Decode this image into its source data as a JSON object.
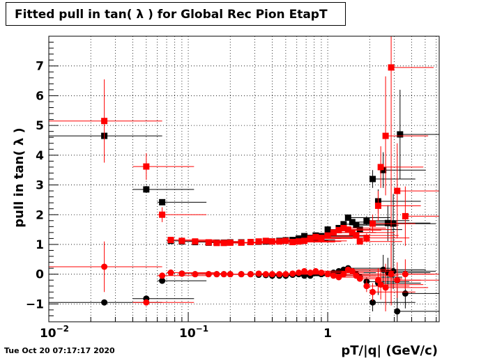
{
  "header": {
    "title": "Fitted pull in tan( λ ) for Global Rec Pion EtapT"
  },
  "footer": {
    "timestamp": "Tue Oct 20 07:17:17 2020"
  },
  "chart_data": {
    "type": "scatter",
    "title": "Fitted pull in tan( λ ) for Global Rec Pion EtapT",
    "xlabel": "pT/|q| (GeV/c)",
    "ylabel": "pull in tan( λ )",
    "xscale": "log",
    "xlim": [
      0.01,
      6.3
    ],
    "ylim": [
      -1.6,
      8.0
    ],
    "grid": true,
    "x_ticks": [
      {
        "value": 0.01,
        "base": "10",
        "exp": "−2"
      },
      {
        "value": 0.1,
        "base": "10",
        "exp": "−1"
      },
      {
        "value": 1,
        "base": "1",
        "exp": ""
      }
    ],
    "y_ticks": [
      {
        "value": -1,
        "label": "−1"
      },
      {
        "value": 0,
        "label": "0"
      },
      {
        "value": 1,
        "label": "1"
      },
      {
        "value": 2,
        "label": "2"
      },
      {
        "value": 3,
        "label": "3"
      },
      {
        "value": 4,
        "label": "4"
      },
      {
        "value": 5,
        "label": "5"
      },
      {
        "value": 6,
        "label": "6"
      },
      {
        "value": 7,
        "label": "7"
      }
    ],
    "series": [
      {
        "role": "sigma",
        "color": "#000000",
        "marker": "square",
        "points": [
          [
            0.025,
            4.65,
            0.015,
            0.04,
            0
          ],
          [
            0.05,
            2.85,
            0.01,
            0.06,
            0.12
          ],
          [
            0.065,
            2.42,
            0.005,
            0.07,
            0.1
          ],
          [
            0.075,
            1.12,
            0.005,
            0.08,
            0.05
          ],
          [
            0.09,
            1.1,
            0.005,
            0.11,
            0
          ],
          [
            0.112,
            1.08,
            0.005,
            0.125,
            0
          ],
          [
            0.14,
            1.06,
            0.005,
            0.15,
            0
          ],
          [
            0.16,
            1.06,
            0.005,
            0.17,
            0
          ],
          [
            0.18,
            1.06,
            0.005,
            0.19,
            0
          ],
          [
            0.2,
            1.07,
            0.005,
            0.21,
            0
          ],
          [
            0.24,
            1.07,
            0.005,
            0.25,
            0
          ],
          [
            0.28,
            1.08,
            0.005,
            0.29,
            0
          ],
          [
            0.32,
            1.09,
            0.005,
            0.33,
            0
          ],
          [
            0.36,
            1.1,
            0.005,
            0.37,
            0
          ],
          [
            0.4,
            1.1,
            0.005,
            0.41,
            0
          ],
          [
            0.45,
            1.12,
            0.005,
            0.46,
            0
          ],
          [
            0.5,
            1.14,
            0.005,
            0.51,
            0
          ],
          [
            0.56,
            1.15,
            0.005,
            0.57,
            0
          ],
          [
            0.62,
            1.2,
            0.005,
            0.63,
            0.05
          ],
          [
            0.68,
            1.28,
            0.005,
            0.69,
            0.05
          ],
          [
            0.75,
            1.22,
            0.005,
            0.76,
            0.05
          ],
          [
            0.82,
            1.3,
            0.005,
            0.83,
            0.05
          ],
          [
            0.9,
            1.28,
            0.005,
            0.91,
            0.05
          ],
          [
            1.0,
            1.5,
            0.005,
            1.02,
            0.06
          ],
          [
            1.1,
            1.4,
            0.005,
            1.12,
            0.06
          ],
          [
            1.2,
            1.55,
            0.005,
            1.22,
            0.07
          ],
          [
            1.3,
            1.68,
            0.005,
            1.32,
            0.07
          ],
          [
            1.4,
            1.9,
            0.005,
            1.42,
            0.08
          ],
          [
            1.5,
            1.75,
            0.005,
            1.52,
            0.08
          ],
          [
            1.6,
            1.65,
            0.005,
            1.62,
            0.1
          ],
          [
            1.7,
            1.5,
            0.005,
            1.72,
            0.1
          ],
          [
            1.9,
            1.8,
            0.05,
            1.95,
            0.15
          ],
          [
            2.1,
            3.2,
            0.05,
            2.15,
            0.3
          ],
          [
            2.3,
            2.45,
            0.05,
            2.35,
            0.4
          ],
          [
            2.5,
            3.5,
            0.05,
            2.55,
            0.6
          ],
          [
            2.7,
            1.72,
            0.05,
            2.75,
            0.6
          ],
          [
            2.95,
            1.7,
            0.05,
            3.0,
            1.0
          ],
          [
            3.3,
            4.7,
            0.1,
            3.4,
            1.5
          ]
        ]
      },
      {
        "role": "sigma",
        "color": "#ff0000",
        "marker": "square",
        "points": [
          [
            0.025,
            5.15,
            0.015,
            0.04,
            1.4
          ],
          [
            0.05,
            3.62,
            0.01,
            0.06,
            0.45
          ],
          [
            0.065,
            2.0,
            0.005,
            0.07,
            0.25
          ],
          [
            0.075,
            1.15,
            0.005,
            0.08,
            0.1
          ],
          [
            0.09,
            1.12,
            0.005,
            0.11,
            0
          ],
          [
            0.112,
            1.1,
            0.005,
            0.125,
            0
          ],
          [
            0.14,
            1.07,
            0.005,
            0.15,
            0
          ],
          [
            0.16,
            1.05,
            0.005,
            0.17,
            0
          ],
          [
            0.18,
            1.05,
            0.005,
            0.19,
            0
          ],
          [
            0.2,
            1.06,
            0.005,
            0.21,
            0
          ],
          [
            0.24,
            1.06,
            0.005,
            0.25,
            0
          ],
          [
            0.28,
            1.08,
            0.005,
            0.29,
            0
          ],
          [
            0.32,
            1.1,
            0.005,
            0.33,
            0
          ],
          [
            0.36,
            1.12,
            0.005,
            0.37,
            0
          ],
          [
            0.4,
            1.1,
            0.005,
            0.41,
            0
          ],
          [
            0.45,
            1.1,
            0.005,
            0.46,
            0
          ],
          [
            0.5,
            1.12,
            0.005,
            0.51,
            0
          ],
          [
            0.56,
            1.08,
            0.005,
            0.57,
            0
          ],
          [
            0.62,
            1.1,
            0.005,
            0.63,
            0.05
          ],
          [
            0.68,
            1.12,
            0.005,
            0.69,
            0.05
          ],
          [
            0.75,
            1.2,
            0.005,
            0.76,
            0.05
          ],
          [
            0.82,
            1.25,
            0.005,
            0.83,
            0.05
          ],
          [
            0.9,
            1.22,
            0.005,
            0.91,
            0.05
          ],
          [
            1.0,
            1.3,
            0.005,
            1.02,
            0.06
          ],
          [
            1.1,
            1.4,
            0.005,
            1.12,
            0.06
          ],
          [
            1.2,
            1.48,
            0.005,
            1.22,
            0.07
          ],
          [
            1.3,
            1.55,
            0.005,
            1.32,
            0.07
          ],
          [
            1.4,
            1.5,
            0.005,
            1.42,
            0.08
          ],
          [
            1.5,
            1.4,
            0.005,
            1.52,
            0.08
          ],
          [
            1.6,
            1.3,
            0.005,
            1.62,
            0.1
          ],
          [
            1.7,
            1.1,
            0.005,
            1.72,
            0.1
          ],
          [
            1.9,
            1.22,
            0.05,
            1.95,
            0.15
          ],
          [
            2.1,
            1.7,
            0.05,
            2.15,
            0.3
          ],
          [
            2.3,
            2.3,
            0.05,
            2.35,
            0.5
          ],
          [
            2.4,
            3.6,
            0.05,
            2.45,
            0.7
          ],
          [
            2.6,
            4.65,
            0.05,
            2.65,
            2.0
          ],
          [
            2.85,
            6.95,
            0.05,
            2.9,
            8.0
          ],
          [
            3.15,
            2.8,
            0.1,
            3.2,
            1.6
          ],
          [
            3.6,
            1.95,
            0.1,
            3.7,
            1.0
          ]
        ]
      },
      {
        "role": "mean",
        "color": "#000000",
        "marker": "circle",
        "points": [
          [
            0.025,
            -0.95,
            0.015,
            0.04,
            0
          ],
          [
            0.05,
            -0.82,
            0.01,
            0.06,
            0.1
          ],
          [
            0.065,
            -0.22,
            0.005,
            0.07,
            0.1
          ],
          [
            0.075,
            0.05,
            0.005,
            0.08,
            0.05
          ],
          [
            0.09,
            0.02,
            0.005,
            0.11,
            0
          ],
          [
            0.112,
            0.0,
            0.005,
            0.125,
            0
          ],
          [
            0.14,
            0.0,
            0.005,
            0.15,
            0
          ],
          [
            0.16,
            0.0,
            0.005,
            0.17,
            0
          ],
          [
            0.18,
            0.0,
            0.005,
            0.19,
            0
          ],
          [
            0.2,
            0.0,
            0.005,
            0.21,
            0
          ],
          [
            0.24,
            0.0,
            0.005,
            0.25,
            0
          ],
          [
            0.28,
            0.0,
            0.005,
            0.29,
            0
          ],
          [
            0.32,
            -0.02,
            0.005,
            0.33,
            0
          ],
          [
            0.36,
            -0.03,
            0.005,
            0.37,
            0
          ],
          [
            0.4,
            -0.05,
            0.005,
            0.41,
            0
          ],
          [
            0.45,
            -0.05,
            0.005,
            0.46,
            0
          ],
          [
            0.5,
            -0.05,
            0.005,
            0.51,
            0
          ],
          [
            0.56,
            -0.02,
            0.005,
            0.57,
            0
          ],
          [
            0.62,
            0.0,
            0.005,
            0.63,
            0.05
          ],
          [
            0.68,
            -0.05,
            0.005,
            0.69,
            0.05
          ],
          [
            0.75,
            -0.05,
            0.005,
            0.76,
            0.05
          ],
          [
            0.82,
            0.05,
            0.005,
            0.83,
            0.05
          ],
          [
            0.9,
            0.0,
            0.005,
            0.91,
            0.05
          ],
          [
            1.0,
            0.0,
            0.005,
            1.02,
            0.06
          ],
          [
            1.1,
            0.05,
            0.005,
            1.12,
            0.06
          ],
          [
            1.2,
            0.1,
            0.005,
            1.22,
            0.07
          ],
          [
            1.3,
            0.15,
            0.005,
            1.32,
            0.07
          ],
          [
            1.4,
            0.2,
            0.005,
            1.42,
            0.08
          ],
          [
            1.5,
            0.1,
            0.005,
            1.52,
            0.08
          ],
          [
            1.6,
            0.0,
            0.005,
            1.62,
            0.1
          ],
          [
            1.7,
            -0.1,
            0.005,
            1.72,
            0.1
          ],
          [
            1.9,
            -0.25,
            0.05,
            1.95,
            0.15
          ],
          [
            2.1,
            -0.95,
            0.05,
            2.15,
            0.3
          ],
          [
            2.3,
            -0.3,
            0.05,
            2.35,
            0.4
          ],
          [
            2.5,
            0.15,
            0.05,
            2.55,
            0.5
          ],
          [
            2.7,
            0.05,
            0.05,
            2.75,
            0.5
          ],
          [
            2.95,
            0.1,
            0.05,
            3.0,
            0.6
          ],
          [
            3.15,
            -1.25,
            0.1,
            3.2,
            0.8
          ],
          [
            3.6,
            -0.65,
            0.1,
            3.7,
            0.5
          ]
        ]
      },
      {
        "role": "mean",
        "color": "#ff0000",
        "marker": "circle",
        "points": [
          [
            0.025,
            0.25,
            0.015,
            0.04,
            0.85
          ],
          [
            0.05,
            -0.95,
            0.01,
            0.06,
            0.1
          ],
          [
            0.065,
            -0.05,
            0.005,
            0.07,
            0.1
          ],
          [
            0.075,
            0.05,
            0.005,
            0.08,
            0.05
          ],
          [
            0.09,
            0.02,
            0.005,
            0.11,
            0
          ],
          [
            0.112,
            0.0,
            0.005,
            0.125,
            0
          ],
          [
            0.14,
            0.0,
            0.005,
            0.15,
            0
          ],
          [
            0.16,
            0.0,
            0.005,
            0.17,
            0
          ],
          [
            0.18,
            0.0,
            0.005,
            0.19,
            0
          ],
          [
            0.2,
            0.0,
            0.005,
            0.21,
            0
          ],
          [
            0.24,
            0.0,
            0.005,
            0.25,
            0
          ],
          [
            0.28,
            0.0,
            0.005,
            0.29,
            0
          ],
          [
            0.32,
            0.02,
            0.005,
            0.33,
            0
          ],
          [
            0.36,
            0.0,
            0.005,
            0.37,
            0
          ],
          [
            0.4,
            0.0,
            0.005,
            0.41,
            0
          ],
          [
            0.45,
            0.0,
            0.005,
            0.46,
            0
          ],
          [
            0.5,
            0.0,
            0.005,
            0.51,
            0
          ],
          [
            0.56,
            0.02,
            0.005,
            0.57,
            0
          ],
          [
            0.62,
            0.05,
            0.005,
            0.63,
            0.05
          ],
          [
            0.68,
            0.1,
            0.005,
            0.69,
            0.05
          ],
          [
            0.75,
            0.05,
            0.005,
            0.76,
            0.05
          ],
          [
            0.82,
            0.1,
            0.005,
            0.83,
            0.05
          ],
          [
            0.9,
            0.05,
            0.005,
            0.91,
            0.05
          ],
          [
            1.0,
            0.0,
            0.005,
            1.02,
            0.06
          ],
          [
            1.1,
            -0.05,
            0.005,
            1.12,
            0.06
          ],
          [
            1.2,
            -0.1,
            0.005,
            1.22,
            0.07
          ],
          [
            1.3,
            0.0,
            0.005,
            1.32,
            0.07
          ],
          [
            1.4,
            0.15,
            0.005,
            1.42,
            0.08
          ],
          [
            1.5,
            0.1,
            0.005,
            1.52,
            0.08
          ],
          [
            1.6,
            -0.05,
            0.005,
            1.62,
            0.1
          ],
          [
            1.7,
            -0.15,
            0.005,
            1.72,
            0.1
          ],
          [
            1.9,
            -0.4,
            0.05,
            1.95,
            0.2
          ],
          [
            2.1,
            -0.6,
            0.05,
            2.15,
            0.3
          ],
          [
            2.3,
            -0.2,
            0.05,
            2.35,
            0.4
          ],
          [
            2.4,
            -0.35,
            0.05,
            2.45,
            0.5
          ],
          [
            2.6,
            -0.45,
            0.05,
            2.65,
            0.8
          ],
          [
            2.85,
            0.0,
            0.05,
            2.9,
            1.0
          ],
          [
            3.15,
            -0.2,
            0.1,
            3.2,
            0.6
          ],
          [
            3.6,
            0.0,
            0.1,
            3.7,
            0.5
          ]
        ]
      }
    ]
  }
}
